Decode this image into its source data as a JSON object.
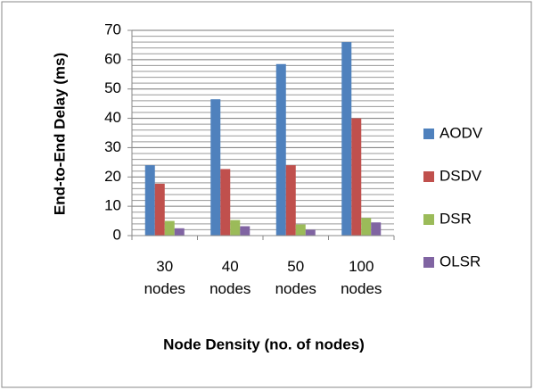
{
  "chart_data": {
    "type": "bar",
    "xlabel": "Node Density (no. of nodes)",
    "ylabel": "End-to-End Delay (ms)",
    "categories": [
      "30 nodes",
      "40 nodes",
      "50 nodes",
      "100 nodes"
    ],
    "series": [
      {
        "name": "AODV",
        "color": "#4f81bd",
        "values": [
          24,
          46.5,
          58.5,
          66
        ]
      },
      {
        "name": "DSDV",
        "color": "#c0504d",
        "values": [
          17.7,
          22.7,
          24,
          40
        ]
      },
      {
        "name": "DSR",
        "color": "#9bbb59",
        "values": [
          5,
          5.3,
          3.8,
          6
        ]
      },
      {
        "name": "OLSR",
        "color": "#8064a2",
        "values": [
          2.5,
          3.2,
          2,
          4.5
        ]
      }
    ],
    "ylim": [
      0,
      70
    ],
    "yticks": [
      0,
      10,
      20,
      30,
      40,
      50,
      60,
      70
    ],
    "minor_yticks": [
      2,
      4,
      6,
      8,
      12,
      14,
      16,
      18,
      22,
      24,
      26,
      28,
      32,
      34,
      36,
      38,
      42,
      44,
      46,
      48,
      52,
      54,
      56,
      58,
      62,
      64,
      66,
      68
    ],
    "grid": true,
    "legend": "right"
  }
}
